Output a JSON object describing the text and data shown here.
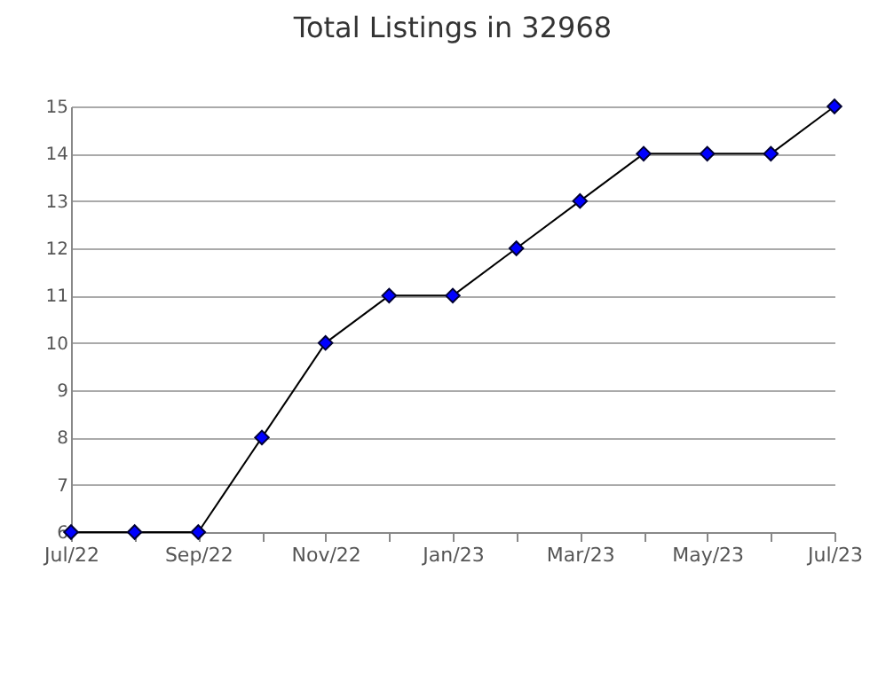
{
  "chart_data": {
    "type": "line",
    "title": "Total Listings in 32968",
    "categories": [
      "Jul/22",
      null,
      "Sep/22",
      null,
      "Nov/22",
      null,
      "Jan/23",
      null,
      "Mar/23",
      null,
      "May/23",
      null,
      "Jul/23"
    ],
    "series": [
      {
        "color": "#0000ff",
        "values": [
          6,
          6,
          6,
          8,
          10,
          11,
          11,
          12,
          13,
          14,
          14,
          14,
          15
        ]
      }
    ],
    "ylim": [
      6,
      15
    ],
    "yticks": [
      6,
      7,
      8,
      9,
      10,
      11,
      12,
      13,
      14,
      15
    ],
    "grid": "y",
    "marker": "diamond",
    "line_style": "solid"
  }
}
